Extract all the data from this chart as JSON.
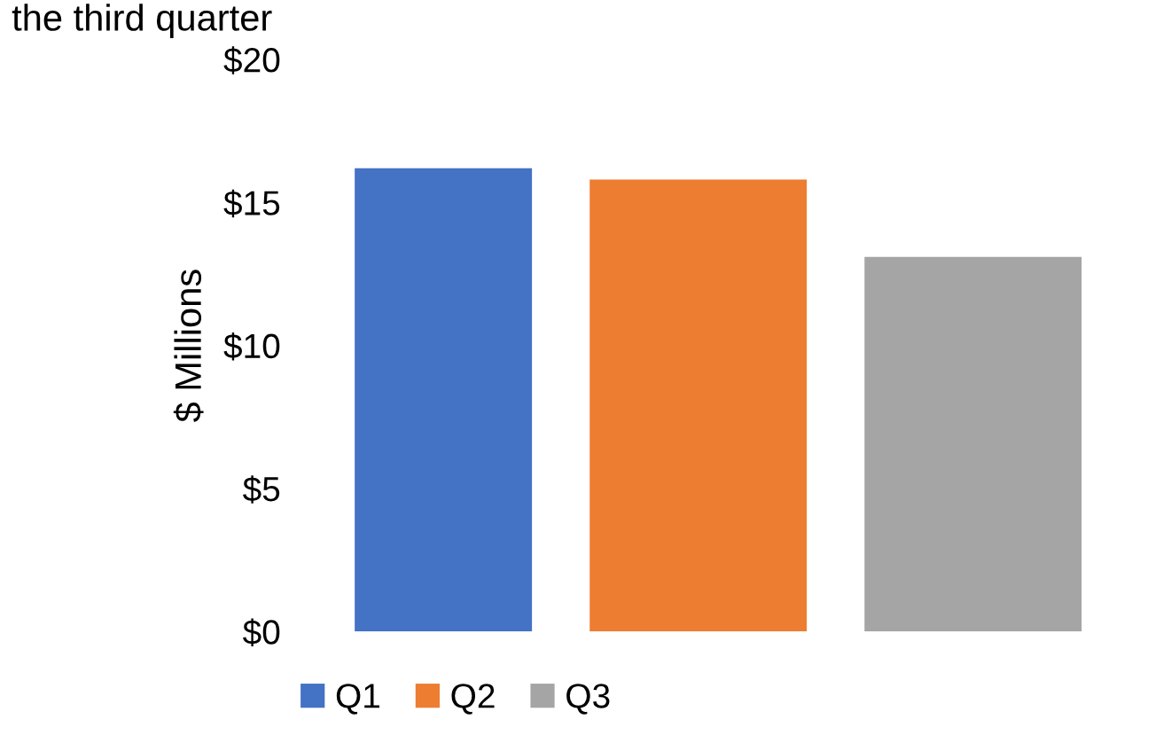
{
  "chart_data": {
    "type": "bar",
    "title": "the third quarter",
    "ylabel": "$ Millions",
    "categories": [
      null
    ],
    "series": [
      {
        "name": "Q1",
        "color": "#4472c4",
        "values": [
          16.2
        ]
      },
      {
        "name": "Q2",
        "color": "#ed7d31",
        "values": [
          15.8
        ]
      },
      {
        "name": "Q3",
        "color": "#a5a5a5",
        "values": [
          13.1
        ]
      }
    ],
    "ylim": [
      0,
      20
    ],
    "yticks": [
      {
        "value": 0,
        "label": "$0"
      },
      {
        "value": 5,
        "label": "$5"
      },
      {
        "value": 10,
        "label": "$10"
      },
      {
        "value": 15,
        "label": "$15"
      },
      {
        "value": 20,
        "label": "$20"
      }
    ],
    "grid": false,
    "legend": "bottom"
  }
}
